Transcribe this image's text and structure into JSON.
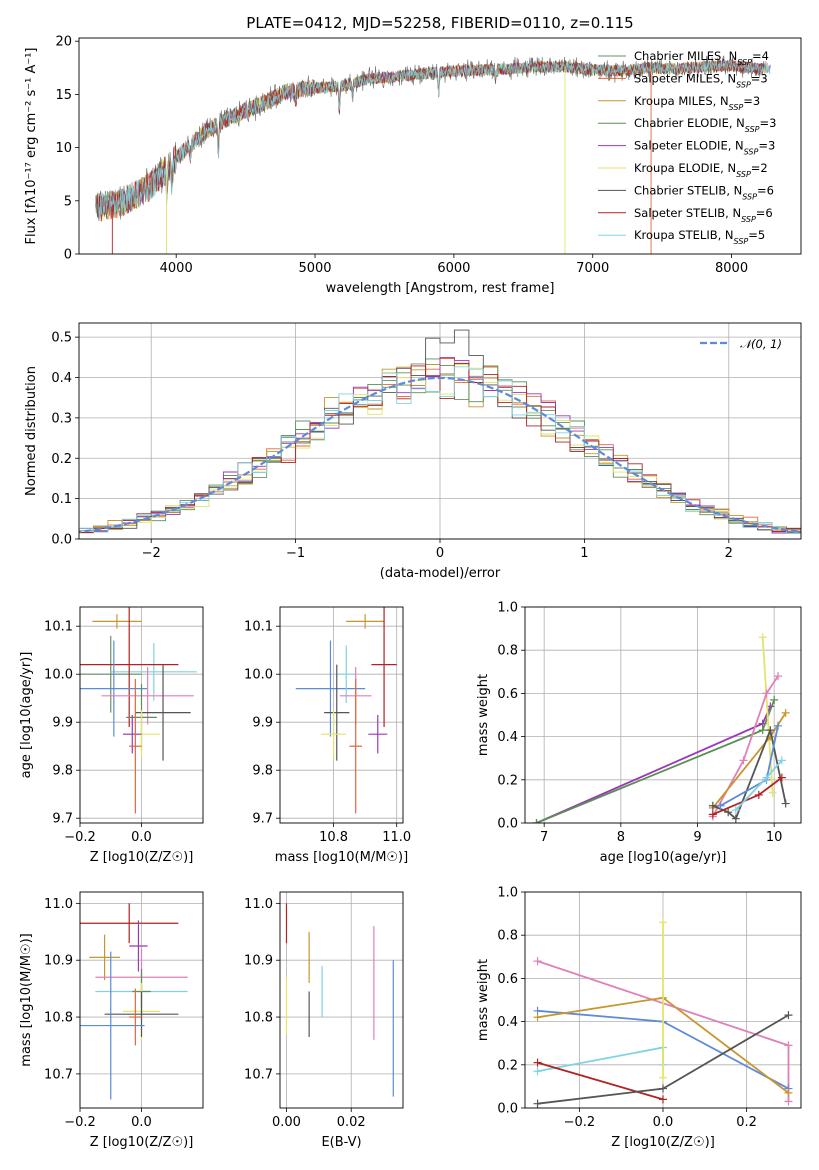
{
  "figure": {
    "title": "PLATE=0412, MJD=52258, FIBERID=0110, z=0.115"
  },
  "colors": {
    "Chabrier MILES": "#6b8f6b",
    "Salpeter MILES": "#e0673c",
    "Kroupa MILES": "#c8962e",
    "Chabrier ELODIE": "#5b8f55",
    "Salpeter ELODIE": "#9b38b8",
    "Kroupa ELODIE": "#e4e36a",
    "Chabrier STELIB": "#555555",
    "Salpeter STELIB": "#b22222",
    "Kroupa STELIB": "#7fd3e0",
    "gaussian": "#5b8bd9"
  },
  "chart_data": [
    {
      "id": "spectrum",
      "type": "line",
      "xlabel": "wavelength [Angstrom, rest frame]",
      "ylabel": "Flux [fλ10⁻¹⁷ erg cm⁻² s⁻¹ A⁻¹]",
      "xlim": [
        3300,
        8500
      ],
      "ylim": [
        0,
        20.3
      ],
      "xticks": [
        4000,
        5000,
        6000,
        7000,
        8000
      ],
      "yticks": [
        0,
        5,
        10,
        15,
        20
      ],
      "legend": [
        "Chabrier MILES, N_SSP=4",
        "Salpeter MILES, N_SSP=3",
        "Kroupa MILES, N_SSP=3",
        "Chabrier ELODIE, N_SSP=3",
        "Salpeter ELODIE, N_SSP=3",
        "Kroupa ELODIE, N_SSP=2",
        "Chabrier STELIB, N_SSP=6",
        "Salpeter STELIB, N_SSP=6",
        "Kroupa STELIB, N_SSP=5"
      ],
      "legend_labels": [
        {
          "name": "Chabrier MILES",
          "n": "4"
        },
        {
          "name": "Salpeter MILES",
          "n": "3"
        },
        {
          "name": "Kroupa MILES",
          "n": "3"
        },
        {
          "name": "Chabrier ELODIE",
          "n": "3"
        },
        {
          "name": "Salpeter ELODIE",
          "n": "3"
        },
        {
          "name": "Kroupa ELODIE",
          "n": "2"
        },
        {
          "name": "Chabrier STELIB",
          "n": "6"
        },
        {
          "name": "Salpeter STELIB",
          "n": "6"
        },
        {
          "name": "Kroupa STELIB",
          "n": "5"
        }
      ],
      "continuum": {
        "x": [
          3400,
          3600,
          3800,
          4000,
          4200,
          4400,
          4600,
          4800,
          5000,
          5200,
          5400,
          5600,
          5800,
          6000,
          6200,
          6400,
          6600,
          6800,
          7000,
          7200,
          7400,
          7600,
          7800,
          8000,
          8200
        ],
        "y": [
          4.3,
          4.8,
          6.2,
          9.0,
          11.4,
          12.9,
          14.0,
          15.3,
          15.6,
          15.8,
          16.5,
          16.7,
          17.0,
          17.2,
          17.3,
          17.4,
          17.6,
          17.6,
          17.3,
          17.2,
          17.5,
          17.4,
          17.6,
          17.7,
          17.4
        ]
      },
      "legend_placement": "upper-right"
    },
    {
      "id": "residuals",
      "type": "histogram",
      "xlabel": "(data-model)/error",
      "ylabel": "Normed distribution",
      "xlim": [
        -2.5,
        2.5
      ],
      "ylim": [
        0,
        0.535
      ],
      "xticks": [
        -2,
        -1,
        0,
        1,
        2
      ],
      "yticks": [
        0.0,
        0.1,
        0.2,
        0.3,
        0.4,
        0.5
      ],
      "bin_width": 0.1,
      "gaussian_label": "𝒩(0, 1)",
      "legend_placement": "upper-right",
      "grid": true
    },
    {
      "id": "age-vs-Z",
      "type": "errorbar",
      "xlabel": "Z [log10(Z/Z☉)]",
      "ylabel": "age [log10(age/yr)]",
      "xlim": [
        -0.2,
        0.2
      ],
      "ylim": [
        9.69,
        10.14
      ],
      "xticks": [
        -0.2,
        0.0
      ],
      "yticks": [
        9.7,
        9.8,
        9.9,
        10.0,
        10.1
      ],
      "points": [
        {
          "model": "Kroupa MILES",
          "x": -0.08,
          "y": 10.11,
          "xerr": 0.08,
          "yerr": 0.015
        },
        {
          "model": "Chabrier MILES",
          "x": -0.1,
          "y": 10.0,
          "xerr": 0.1,
          "yerr": 0.08
        },
        {
          "model": "Kroupa STELIB",
          "x": 0.04,
          "y": 10.005,
          "xerr": 0.14,
          "yerr": 0.06
        },
        {
          "model": "Salpeter STELIB",
          "x": -0.04,
          "y": 10.02,
          "xerr": 0.16,
          "yerr": 0.13
        },
        {
          "model": "gaussian",
          "x": -0.09,
          "y": 9.97,
          "xerr": 0.11,
          "yerr": 0.1
        },
        {
          "model": "Salpeter ELODIE2",
          "x": 0.02,
          "y": 9.955,
          "xerr": 0.15,
          "yerr": 0.06
        },
        {
          "model": "Chabrier STELIB",
          "x": 0.07,
          "y": 9.92,
          "xerr": 0.09,
          "yerr": 0.1
        },
        {
          "model": "Chabrier ELODIE",
          "x": 0.0,
          "y": 9.91,
          "xerr": 0.05,
          "yerr": 0.07
        },
        {
          "model": "Kroupa ELODIE",
          "x": 0.0,
          "y": 9.875,
          "xerr": 0.06,
          "yerr": 0.05
        },
        {
          "model": "Salpeter ELODIE",
          "x": -0.03,
          "y": 9.875,
          "xerr": 0.03,
          "yerr": 0.04
        },
        {
          "model": "Salpeter MILES",
          "x": -0.02,
          "y": 9.85,
          "xerr": 0.02,
          "yerr": 0.14
        }
      ]
    },
    {
      "id": "age-vs-mass",
      "type": "errorbar",
      "xlabel": "mass [log10(M/M☉)]",
      "ylabel": "",
      "xlim": [
        10.63,
        11.02
      ],
      "ylim": [
        9.69,
        10.14
      ],
      "xticks": [
        10.8,
        11.0
      ],
      "yticks": [
        9.7,
        9.8,
        9.9,
        10.0,
        10.1
      ],
      "points": [
        {
          "model": "Kroupa MILES",
          "x": 10.9,
          "y": 10.11,
          "xerr": 0.06,
          "yerr": 0.015
        },
        {
          "model": "gaussian",
          "x": 10.79,
          "y": 9.97,
          "xerr": 0.11,
          "yerr": 0.1
        },
        {
          "model": "Kroupa STELIB",
          "x": 10.84,
          "y": 10.0,
          "xerr": 0.03,
          "yerr": 0.06
        },
        {
          "model": "Salpeter STELIB",
          "x": 10.96,
          "y": 10.02,
          "xerr": 0.04,
          "yerr": 0.13
        },
        {
          "model": "Salpeter ELODIE2",
          "x": 10.87,
          "y": 9.955,
          "xerr": 0.05,
          "yerr": 0.06
        },
        {
          "model": "Chabrier STELIB",
          "x": 10.81,
          "y": 9.92,
          "xerr": 0.04,
          "yerr": 0.1
        },
        {
          "model": "Kroupa ELODIE",
          "x": 10.8,
          "y": 9.875,
          "xerr": 0.04,
          "yerr": 0.05
        },
        {
          "model": "Salpeter ELODIE",
          "x": 10.94,
          "y": 9.875,
          "xerr": 0.03,
          "yerr": 0.04
        },
        {
          "model": "Salpeter MILES",
          "x": 10.87,
          "y": 9.85,
          "xerr": 0.02,
          "yerr": 0.14
        }
      ]
    },
    {
      "id": "massweight-vs-age",
      "type": "line",
      "xlabel": "age  [log10(age/yr)]",
      "ylabel": "mass weight",
      "xlim": [
        6.75,
        10.35
      ],
      "ylim": [
        0,
        1.0
      ],
      "xticks": [
        7,
        8,
        9,
        10
      ],
      "yticks": [
        0.0,
        0.2,
        0.4,
        0.6,
        0.8,
        1.0
      ],
      "series": [
        {
          "model": "Salpeter ELODIE",
          "x": [
            6.9,
            9.85,
            9.95
          ],
          "y": [
            0.0,
            0.46,
            0.54
          ]
        },
        {
          "model": "Chabrier ELODIE",
          "x": [
            6.9,
            9.85,
            10.0
          ],
          "y": [
            0.0,
            0.43,
            0.57
          ]
        },
        {
          "model": "Kroupa ELODIE",
          "x": [
            9.85,
            9.98
          ],
          "y": [
            0.86,
            0.14
          ]
        },
        {
          "model": "Salpeter ELODIE2",
          "x": [
            9.2,
            9.6,
            9.9,
            10.05
          ],
          "y": [
            0.03,
            0.29,
            0.6,
            0.68
          ]
        },
        {
          "model": "Kroupa MILES",
          "x": [
            9.2,
            9.95,
            10.15
          ],
          "y": [
            0.07,
            0.4,
            0.51
          ]
        },
        {
          "model": "Chabrier STELIB",
          "x": [
            9.2,
            9.4,
            9.5,
            9.95,
            10.15
          ],
          "y": [
            0.08,
            0.05,
            0.02,
            0.43,
            0.09
          ]
        },
        {
          "model": "Salpeter STELIB",
          "x": [
            9.2,
            9.8,
            10.1
          ],
          "y": [
            0.04,
            0.13,
            0.21
          ]
        },
        {
          "model": "gaussian",
          "x": [
            9.3,
            9.9,
            10.05
          ],
          "y": [
            0.08,
            0.2,
            0.45
          ]
        },
        {
          "model": "Kroupa STELIB",
          "x": [
            9.5,
            9.9,
            10.1
          ],
          "y": [
            0.06,
            0.21,
            0.29
          ]
        }
      ],
      "grid": true
    },
    {
      "id": "mass-vs-Z",
      "type": "errorbar",
      "xlabel": "Z [log10(Z/Z☉)]",
      "ylabel": "mass [log10(M/M☉)]",
      "xlim": [
        -0.2,
        0.2
      ],
      "ylim": [
        10.64,
        11.02
      ],
      "xticks": [
        -0.2,
        0.0
      ],
      "yticks": [
        10.7,
        10.8,
        10.9,
        11.0
      ],
      "points": [
        {
          "model": "Salpeter STELIB",
          "x": -0.04,
          "y": 10.965,
          "xerr": 0.16,
          "yerr": 0.035
        },
        {
          "model": "Salpeter ELODIE",
          "x": -0.01,
          "y": 10.925,
          "xerr": 0.03,
          "yerr": 0.045
        },
        {
          "model": "Kroupa MILES",
          "x": -0.12,
          "y": 10.905,
          "xerr": 0.05,
          "yerr": 0.04
        },
        {
          "model": "Salpeter ELODIE2",
          "x": 0.0,
          "y": 10.87,
          "xerr": 0.15,
          "yerr": 0.05
        },
        {
          "model": "Kroupa STELIB",
          "x": 0.0,
          "y": 10.845,
          "xerr": 0.15,
          "yerr": 0.03
        },
        {
          "model": "Chabrier ELODIE",
          "x": 0.0,
          "y": 10.845,
          "xerr": 0.03,
          "yerr": 0.04
        },
        {
          "model": "Kroupa ELODIE",
          "x": 0.0,
          "y": 10.81,
          "xerr": 0.06,
          "yerr": 0.05
        },
        {
          "model": "Chabrier STELIB",
          "x": 0.0,
          "y": 10.805,
          "xerr": 0.12,
          "yerr": 0.04
        },
        {
          "model": "gaussian",
          "x": -0.1,
          "y": 10.785,
          "xerr": 0.11,
          "yerr": 0.13
        },
        {
          "model": "Salpeter MILES",
          "x": -0.02,
          "y": 10.8,
          "xerr": 0.02,
          "yerr": 0.05
        }
      ]
    },
    {
      "id": "mass-vs-EBV",
      "type": "errorbar",
      "xlabel": "E(B-V)",
      "ylabel": "",
      "xlim": [
        -0.002,
        0.036
      ],
      "ylim": [
        10.64,
        11.02
      ],
      "xticks": [
        0.0,
        0.02
      ],
      "yticks": [
        10.7,
        10.8,
        10.9,
        11.0
      ],
      "points": [
        {
          "model": "Salpeter STELIB",
          "x": 0.0,
          "y": 10.965,
          "xerr": 0.0,
          "yerr": 0.035
        },
        {
          "model": "Kroupa MILES",
          "x": 0.007,
          "y": 10.905,
          "xerr": 0.0,
          "yerr": 0.045
        },
        {
          "model": "Chabrier STELIB",
          "x": 0.007,
          "y": 10.805,
          "xerr": 0.0,
          "yerr": 0.04
        },
        {
          "model": "Kroupa STELIB",
          "x": 0.011,
          "y": 10.845,
          "xerr": 0.0,
          "yerr": 0.045
        },
        {
          "model": "Salpeter ELODIE2",
          "x": 0.027,
          "y": 10.86,
          "xerr": 0.0,
          "yerr": 0.1
        },
        {
          "model": "gaussian",
          "x": 0.033,
          "y": 10.78,
          "xerr": 0.0,
          "yerr": 0.12
        },
        {
          "model": "Kroupa ELODIE",
          "x": 0.0,
          "y": 10.82,
          "xerr": 0.0,
          "yerr": 0.05
        }
      ]
    },
    {
      "id": "massweight-vs-Z",
      "type": "line",
      "xlabel": "Z [log10(Z/Z☉)]",
      "ylabel": "mass weight",
      "xlim": [
        -0.33,
        0.33
      ],
      "ylim": [
        0,
        1.0
      ],
      "xticks": [
        -0.2,
        0.0,
        0.2
      ],
      "yticks": [
        0.0,
        0.2,
        0.4,
        0.6,
        0.8,
        1.0
      ],
      "series": [
        {
          "model": "Salpeter ELODIE2",
          "x": [
            -0.3,
            0.3,
            0.3
          ],
          "y": [
            0.68,
            0.29,
            0.03
          ]
        },
        {
          "model": "gaussian",
          "x": [
            -0.3,
            0.0,
            0.3
          ],
          "y": [
            0.45,
            0.4,
            0.09
          ]
        },
        {
          "model": "Kroupa MILES",
          "x": [
            -0.3,
            0.0,
            0.3
          ],
          "y": [
            0.42,
            0.51,
            0.07
          ]
        },
        {
          "model": "Kroupa STELIB",
          "x": [
            -0.3,
            0.0,
            0.0
          ],
          "y": [
            0.17,
            0.28,
            0.2
          ]
        },
        {
          "model": "Salpeter STELIB",
          "x": [
            -0.3,
            0.0
          ],
          "y": [
            0.21,
            0.04
          ]
        },
        {
          "model": "Chabrier STELIB",
          "x": [
            -0.3,
            0.0,
            0.3
          ],
          "y": [
            0.02,
            0.09,
            0.43
          ]
        },
        {
          "model": "Kroupa ELODIE",
          "x": [
            0.0,
            0.0
          ],
          "y": [
            0.86,
            0.14
          ]
        }
      ],
      "grid": true
    }
  ]
}
